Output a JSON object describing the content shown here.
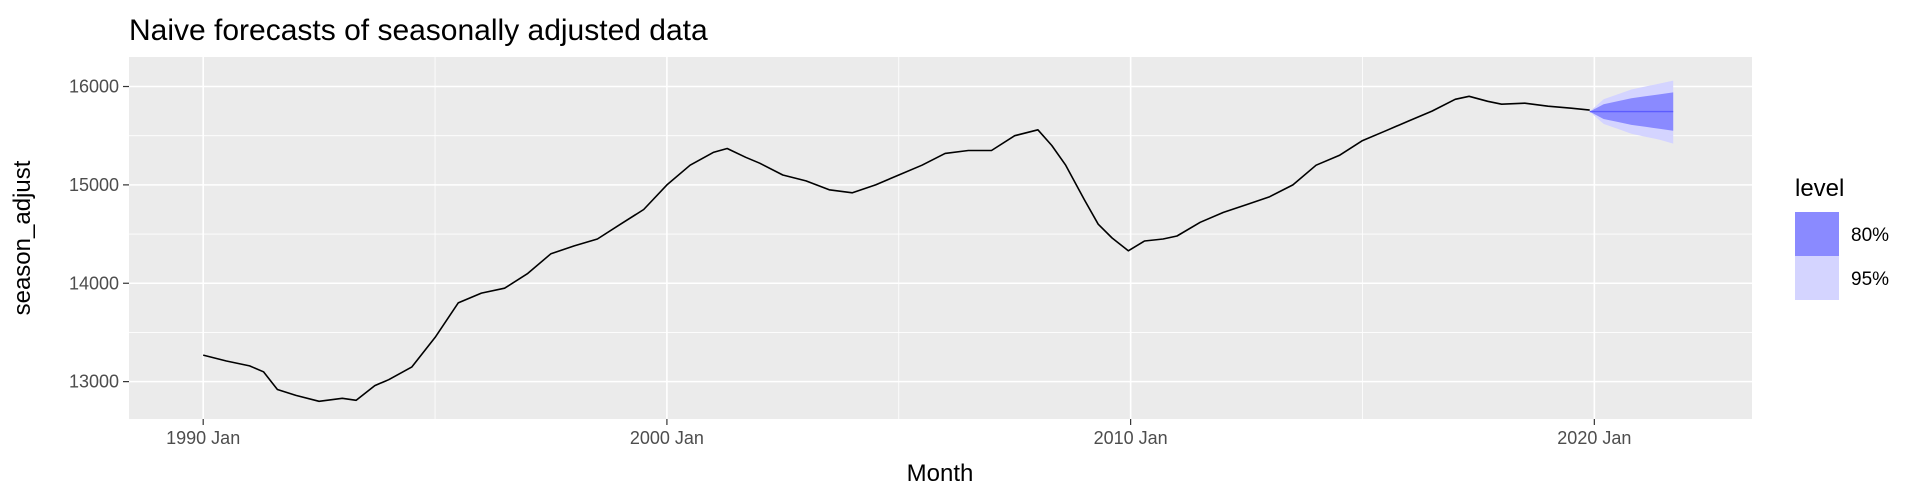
{
  "chart_data": {
    "type": "line",
    "title": "Naive forecasts of seasonally adjusted data",
    "xlabel": "Month",
    "ylabel": "season_adjust",
    "x_ticks": [
      {
        "value": 1990.0,
        "label": "1990 Jan"
      },
      {
        "value": 2000.0,
        "label": "2000 Jan"
      },
      {
        "value": 2010.0,
        "label": "2010 Jan"
      },
      {
        "value": 2020.0,
        "label": "2020 Jan"
      }
    ],
    "y_ticks": [
      13000,
      14000,
      15000,
      16000
    ],
    "xlim": [
      1988.4,
      2023.4
    ],
    "ylim": [
      12620,
      16300
    ],
    "grid": true,
    "legend": {
      "title": "level",
      "position": "right",
      "entries": [
        {
          "label": "80%",
          "color": "#8a8aff"
        },
        {
          "label": "95%",
          "color": "#d4d4ff"
        }
      ]
    },
    "series": [
      {
        "type": "line",
        "color": "#000000",
        "x": [
          1990.0,
          1990.5,
          1991.0,
          1991.3,
          1991.6,
          1992.0,
          1992.5,
          1993.0,
          1993.3,
          1993.7,
          1994.0,
          1994.5,
          1995.0,
          1995.5,
          1996.0,
          1996.5,
          1997.0,
          1997.5,
          1998.0,
          1998.5,
          1999.0,
          1999.5,
          2000.0,
          2000.5,
          2001.0,
          2001.3,
          2001.7,
          2002.0,
          2002.5,
          2003.0,
          2003.5,
          2004.0,
          2004.5,
          2005.0,
          2005.5,
          2006.0,
          2006.5,
          2007.0,
          2007.5,
          2008.0,
          2008.3,
          2008.6,
          2009.0,
          2009.3,
          2009.6,
          2009.95,
          2010.3,
          2010.7,
          2011.0,
          2011.5,
          2012.0,
          2012.5,
          2013.0,
          2013.5,
          2014.0,
          2014.5,
          2015.0,
          2015.5,
          2016.0,
          2016.5,
          2017.0,
          2017.3,
          2017.7,
          2018.0,
          2018.5,
          2019.0,
          2019.5,
          2019.9
        ],
        "y": [
          13270,
          13210,
          13160,
          13100,
          12920,
          12860,
          12800,
          12830,
          12810,
          12960,
          13020,
          13150,
          13450,
          13800,
          13900,
          13950,
          14100,
          14300,
          14380,
          14450,
          14600,
          14750,
          15000,
          15200,
          15330,
          15370,
          15280,
          15220,
          15100,
          15040,
          14950,
          14920,
          15000,
          15100,
          15200,
          15320,
          15350,
          15350,
          15500,
          15560,
          15400,
          15200,
          14850,
          14600,
          14460,
          14330,
          14430,
          14450,
          14480,
          14620,
          14720,
          14800,
          14880,
          15000,
          15200,
          15300,
          15450,
          15550,
          15650,
          15750,
          15870,
          15900,
          15850,
          15820,
          15830,
          15800,
          15780,
          15760
        ]
      },
      {
        "type": "line",
        "name": "forecast",
        "color": "#5c5cff",
        "x": [
          2019.9,
          2021.7
        ],
        "y": [
          15745,
          15745
        ]
      }
    ],
    "intervals": [
      {
        "level": "95%",
        "color": "#d4d4ff",
        "x": [
          2019.9,
          2020.2,
          2020.5,
          2020.8,
          2021.1,
          2021.4,
          2021.7
        ],
        "lower": [
          15745,
          15620,
          15570,
          15520,
          15490,
          15460,
          15420
        ],
        "upper": [
          15745,
          15870,
          15920,
          15970,
          16000,
          16030,
          16060
        ]
      },
      {
        "level": "80%",
        "color": "#8a8aff",
        "x": [
          2019.9,
          2020.2,
          2020.5,
          2020.8,
          2021.1,
          2021.4,
          2021.7
        ],
        "lower": [
          15745,
          15670,
          15640,
          15610,
          15590,
          15570,
          15550
        ],
        "upper": [
          15745,
          15820,
          15850,
          15880,
          15900,
          15920,
          15940
        ]
      }
    ]
  }
}
